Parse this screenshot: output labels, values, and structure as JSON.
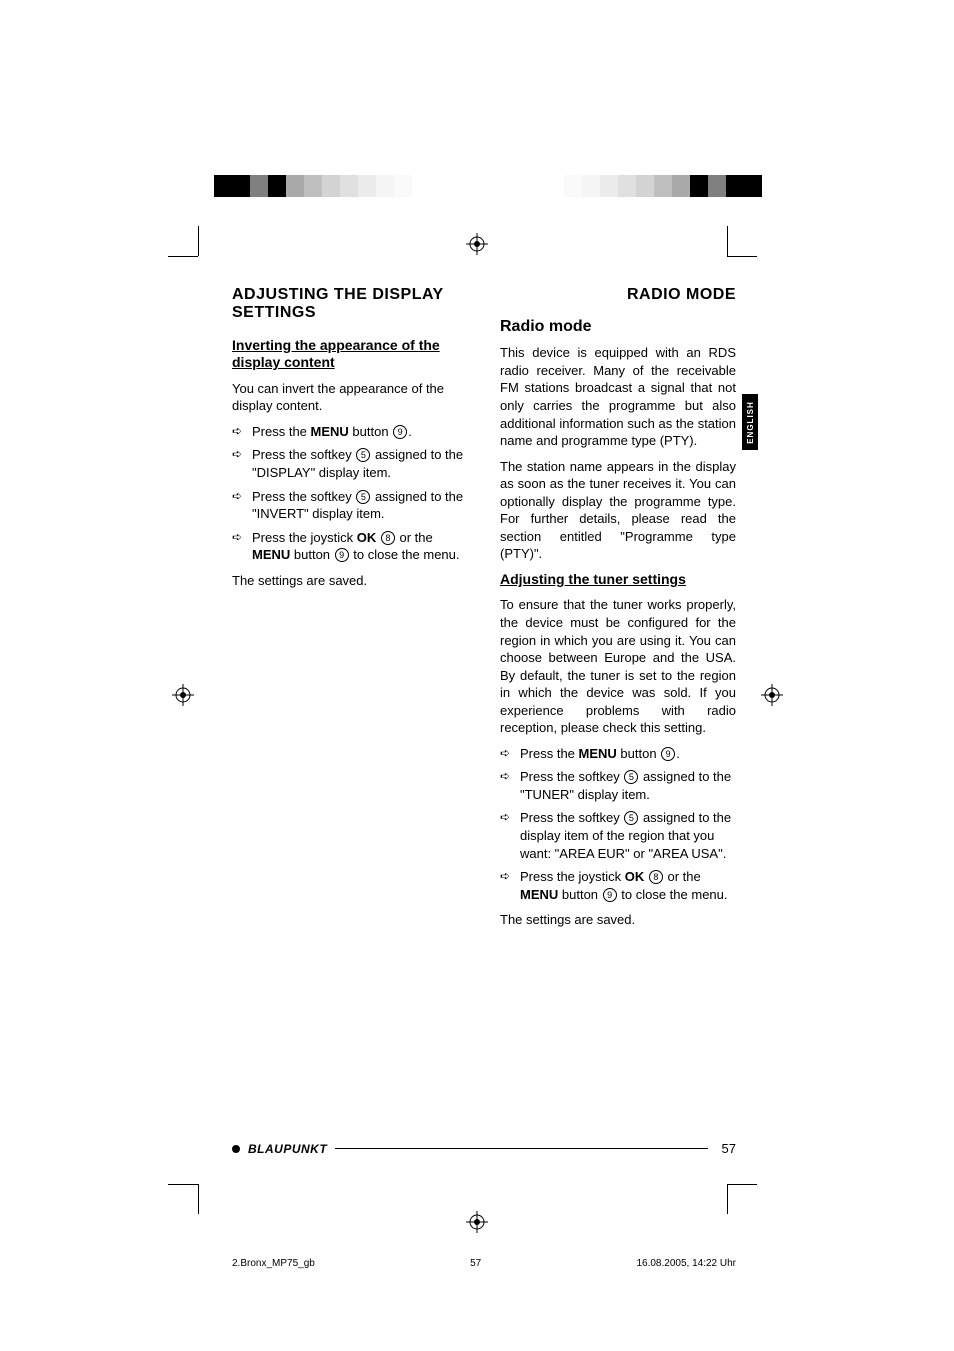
{
  "calibration": {
    "left_widths": [
      36,
      18,
      18,
      18,
      18,
      18,
      18,
      18,
      18,
      18,
      18,
      18,
      36
    ],
    "left_colors": [
      "#ffffff",
      "#000000",
      "#000000",
      "#808080",
      "#000000",
      "#a9a9a9",
      "#bfbfbf",
      "#d3d3d3",
      "#e0e0e0",
      "#ececec",
      "#f5f5f5",
      "#fafafa",
      "#ffffff"
    ],
    "right_widths": [
      36,
      18,
      18,
      18,
      18,
      18,
      18,
      18,
      18,
      18,
      18,
      18,
      36
    ],
    "right_colors": [
      "#ffffff",
      "#fafafa",
      "#f5f5f5",
      "#ececec",
      "#e0e0e0",
      "#d3d3d3",
      "#bfbfbf",
      "#a9a9a9",
      "#000000",
      "#808080",
      "#000000",
      "#000000",
      "#ffffff"
    ]
  },
  "lang_tab": "ENGLISH",
  "left": {
    "running": "ADJUSTING THE DISPLAY SETTINGS",
    "h1": "Inverting the appearance of the display content",
    "p1": "You can invert the appearance of the display content.",
    "s1a": "Press the ",
    "s1b": "MENU",
    "s1c": " button ",
    "s1n": "9",
    "s1d": ".",
    "s2a": "Press the softkey ",
    "s2n": "5",
    "s2b": " assigned to the \"DISPLAY\" display item.",
    "s3a": "Press the softkey ",
    "s3n": "5",
    "s3b": " assigned to the \"INVERT\" display item.",
    "s4a": "Press the joystick ",
    "s4b": "OK",
    "s4n1": "8",
    "s4c": " or the ",
    "s4d": "MENU",
    "s4e": " button ",
    "s4n2": "9",
    "s4f": " to close the menu.",
    "p2": "The settings are saved."
  },
  "right": {
    "running": "RADIO MODE",
    "h_section": "Radio mode",
    "p1": "This device is equipped with an RDS radio receiver. Many of the receivable FM stations broadcast a signal that not only carries the programme but also additional information such as the station name and programme type (PTY).",
    "p2": "The station name appears in the display as soon as the tuner receives it. You can optionally display the programme type. For further details, please read the section entitled \"Programme type (PTY)\".",
    "h1": "Adjusting the tuner settings",
    "p3": "To ensure that the tuner works properly, the device must be configured for the region in which you are using it. You can choose between Europe and the USA. By default, the tuner is set to the region in which the device was sold. If you experience problems with radio reception, please check this setting.",
    "s1a": "Press the ",
    "s1b": "MENU",
    "s1c": " button ",
    "s1n": "9",
    "s1d": ".",
    "s2a": "Press the softkey ",
    "s2n": "5",
    "s2b": " assigned to the \"TUNER\" display item.",
    "s3a": "Press the softkey ",
    "s3n": "5",
    "s3b": " assigned to the display item of the region that you want: \"AREA EUR\" or \"AREA USA\".",
    "s4a": "Press the joystick ",
    "s4b": "OK",
    "s4n1": "8",
    "s4c": " or the ",
    "s4d": "MENU",
    "s4e": " button ",
    "s4n2": "9",
    "s4f": " to close the menu.",
    "p4": "The settings are saved."
  },
  "footer": {
    "brand": "BLAUPUNKT",
    "page": "57"
  },
  "imposition": {
    "file": "2.Bronx_MP75_gb",
    "page": "57",
    "date": "16.08.2005, 14:22 Uhr"
  }
}
